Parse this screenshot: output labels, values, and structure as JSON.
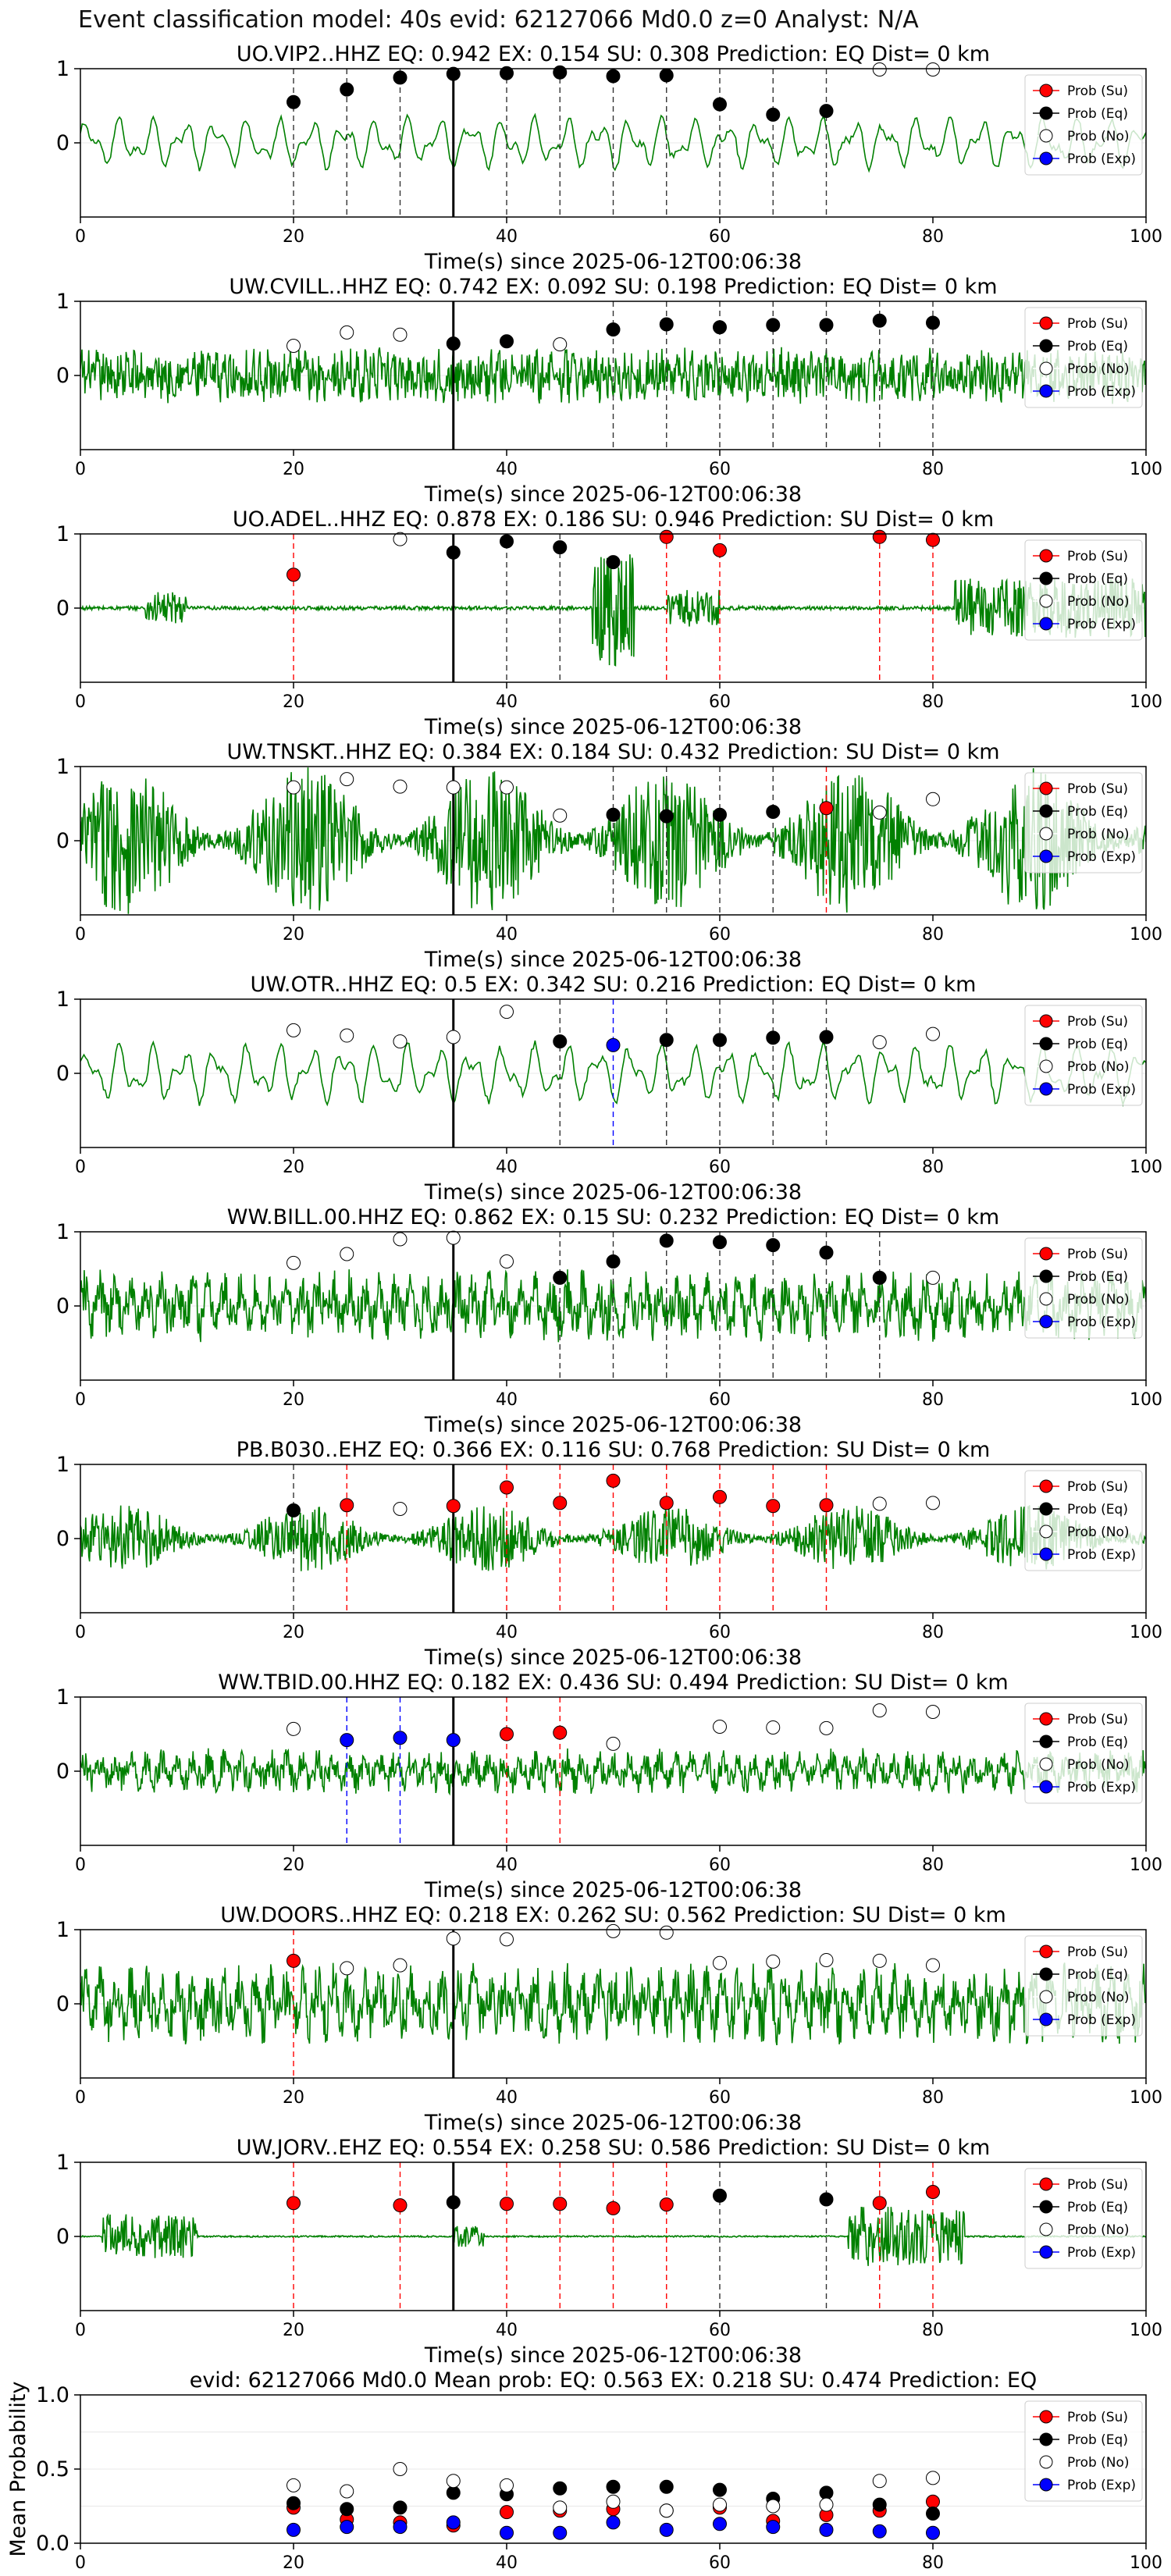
{
  "figure_title": "Event classification model: 40s evid: 62127066 Md0.0 z=0 Analyst: N/A",
  "legend": [
    "Prob (Su)",
    "Prob (Eq)",
    "Prob (No)",
    "Prob (Exp)"
  ],
  "colors": {
    "su": "#ff0000",
    "eq": "#000000",
    "no": "#ffffff",
    "exp": "#0000ff",
    "wave": "#008000"
  },
  "x_label": "Time(s) since 2025-06-12T00:06:38",
  "x_ticks": [
    0,
    20,
    40,
    60,
    80,
    100
  ],
  "y_ticks": [
    0,
    1
  ],
  "xlim": [
    0,
    100
  ],
  "origin_marker_time": 35,
  "chart_data": [
    {
      "type": "scatter",
      "title": "UO.VIP2..HHZ   EQ: 0.942  EX: 0.154  SU: 0.308   Prediction: EQ    Dist= 0 km",
      "ylim": [
        -1,
        1
      ],
      "wave": {
        "style": "smooth",
        "amp": 0.35
      },
      "points": [
        [
          20,
          "eq",
          0.55
        ],
        [
          25,
          "eq",
          0.72
        ],
        [
          30,
          "eq",
          0.88
        ],
        [
          35,
          "eq",
          0.93
        ],
        [
          40,
          "eq",
          0.94
        ],
        [
          45,
          "eq",
          0.95
        ],
        [
          50,
          "eq",
          0.9
        ],
        [
          55,
          "eq",
          0.91
        ],
        [
          60,
          "eq",
          0.52
        ],
        [
          65,
          "eq",
          0.38
        ],
        [
          70,
          "eq",
          0.43
        ],
        [
          75,
          "no",
          0.99
        ],
        [
          80,
          "no",
          0.99
        ]
      ],
      "lines": [
        [
          20,
          "eq"
        ],
        [
          25,
          "eq"
        ],
        [
          30,
          "eq"
        ],
        [
          40,
          "eq"
        ],
        [
          45,
          "eq"
        ],
        [
          50,
          "eq"
        ],
        [
          55,
          "eq"
        ],
        [
          60,
          "eq"
        ],
        [
          65,
          "eq"
        ],
        [
          70,
          "eq"
        ]
      ]
    },
    {
      "type": "scatter",
      "title": "UW.CVILL..HHZ   EQ: 0.742  EX: 0.092  SU: 0.198   Prediction: EQ    Dist= 0 km",
      "ylim": [
        -1,
        1
      ],
      "wave": {
        "style": "noise",
        "amp": 0.35
      },
      "points": [
        [
          20,
          "no",
          0.4
        ],
        [
          25,
          "no",
          0.58
        ],
        [
          30,
          "no",
          0.55
        ],
        [
          35,
          "eq",
          0.43
        ],
        [
          40,
          "eq",
          0.46
        ],
        [
          45,
          "no",
          0.42
        ],
        [
          50,
          "eq",
          0.62
        ],
        [
          55,
          "eq",
          0.69
        ],
        [
          60,
          "eq",
          0.65
        ],
        [
          65,
          "eq",
          0.68
        ],
        [
          70,
          "eq",
          0.68
        ],
        [
          75,
          "eq",
          0.74
        ],
        [
          80,
          "eq",
          0.71
        ]
      ],
      "lines": [
        [
          50,
          "eq"
        ],
        [
          55,
          "eq"
        ],
        [
          60,
          "eq"
        ],
        [
          65,
          "eq"
        ],
        [
          70,
          "eq"
        ],
        [
          75,
          "eq"
        ],
        [
          80,
          "eq"
        ]
      ]
    },
    {
      "type": "scatter",
      "title": "UO.ADEL..HHZ   EQ: 0.878  EX: 0.186  SU: 0.946   Prediction: SU    Dist= 0 km",
      "ylim": [
        -1,
        1
      ],
      "wave": {
        "style": "bursts",
        "amp": 0.1
      },
      "points": [
        [
          20,
          "su",
          0.45
        ],
        [
          30,
          "no",
          0.93
        ],
        [
          35,
          "eq",
          0.75
        ],
        [
          40,
          "eq",
          0.9
        ],
        [
          45,
          "eq",
          0.82
        ],
        [
          50,
          "eq",
          0.62
        ],
        [
          55,
          "su",
          0.96
        ],
        [
          60,
          "su",
          0.78
        ],
        [
          75,
          "su",
          0.96
        ],
        [
          80,
          "su",
          0.92
        ]
      ],
      "lines": [
        [
          20,
          "su"
        ],
        [
          40,
          "eq"
        ],
        [
          45,
          "eq"
        ],
        [
          55,
          "su"
        ],
        [
          60,
          "su"
        ],
        [
          75,
          "su"
        ],
        [
          80,
          "su"
        ]
      ]
    },
    {
      "type": "scatter",
      "title": "UW.TNSKT..HHZ   EQ: 0.384  EX: 0.184  SU: 0.432   Prediction: SU    Dist= 0 km",
      "ylim": [
        -1,
        1
      ],
      "wave": {
        "style": "dense",
        "amp": 0.55
      },
      "points": [
        [
          20,
          "no",
          0.72
        ],
        [
          25,
          "no",
          0.83
        ],
        [
          30,
          "no",
          0.73
        ],
        [
          35,
          "no",
          0.72
        ],
        [
          40,
          "no",
          0.72
        ],
        [
          45,
          "no",
          0.34
        ],
        [
          50,
          "eq",
          0.35
        ],
        [
          55,
          "eq",
          0.33
        ],
        [
          60,
          "eq",
          0.35
        ],
        [
          65,
          "eq",
          0.39
        ],
        [
          70,
          "su",
          0.44
        ],
        [
          75,
          "no",
          0.38
        ],
        [
          80,
          "no",
          0.56
        ]
      ],
      "lines": [
        [
          50,
          "eq"
        ],
        [
          55,
          "eq"
        ],
        [
          60,
          "eq"
        ],
        [
          65,
          "eq"
        ],
        [
          70,
          "su"
        ]
      ]
    },
    {
      "type": "scatter",
      "title": "UW.OTR..HHZ   EQ: 0.5  EX: 0.342  SU: 0.216   Prediction: EQ    Dist= 0 km",
      "ylim": [
        -1,
        1
      ],
      "wave": {
        "style": "smooth",
        "amp": 0.4
      },
      "points": [
        [
          20,
          "no",
          0.58
        ],
        [
          25,
          "no",
          0.51
        ],
        [
          30,
          "no",
          0.43
        ],
        [
          35,
          "no",
          0.49
        ],
        [
          40,
          "no",
          0.83
        ],
        [
          45,
          "eq",
          0.43
        ],
        [
          50,
          "exp",
          0.38
        ],
        [
          55,
          "eq",
          0.45
        ],
        [
          60,
          "eq",
          0.45
        ],
        [
          65,
          "eq",
          0.48
        ],
        [
          70,
          "eq",
          0.49
        ],
        [
          75,
          "no",
          0.42
        ],
        [
          80,
          "no",
          0.53
        ]
      ],
      "lines": [
        [
          45,
          "eq"
        ],
        [
          50,
          "exp"
        ],
        [
          55,
          "eq"
        ],
        [
          60,
          "eq"
        ],
        [
          65,
          "eq"
        ],
        [
          70,
          "eq"
        ]
      ]
    },
    {
      "type": "scatter",
      "title": "WW.BILL.00.HHZ   EQ: 0.862  EX: 0.15  SU: 0.232   Prediction: EQ    Dist= 0 km",
      "ylim": [
        -1,
        1
      ],
      "wave": {
        "style": "medium",
        "amp": 0.4
      },
      "points": [
        [
          20,
          "no",
          0.58
        ],
        [
          25,
          "no",
          0.7
        ],
        [
          30,
          "no",
          0.9
        ],
        [
          35,
          "no",
          0.92
        ],
        [
          40,
          "no",
          0.6
        ],
        [
          45,
          "eq",
          0.38
        ],
        [
          50,
          "eq",
          0.6
        ],
        [
          55,
          "eq",
          0.88
        ],
        [
          60,
          "eq",
          0.86
        ],
        [
          65,
          "eq",
          0.82
        ],
        [
          70,
          "eq",
          0.72
        ],
        [
          75,
          "eq",
          0.38
        ],
        [
          80,
          "no",
          0.38
        ]
      ],
      "lines": [
        [
          45,
          "eq"
        ],
        [
          50,
          "eq"
        ],
        [
          55,
          "eq"
        ],
        [
          60,
          "eq"
        ],
        [
          65,
          "eq"
        ],
        [
          70,
          "eq"
        ],
        [
          75,
          "eq"
        ]
      ]
    },
    {
      "type": "scatter",
      "title": "PB.B030..EHZ   EQ: 0.366  EX: 0.116  SU: 0.768   Prediction: SU    Dist= 0 km",
      "ylim": [
        -1,
        1
      ],
      "wave": {
        "style": "dense",
        "amp": 0.25
      },
      "points": [
        [
          20,
          "eq",
          0.38
        ],
        [
          25,
          "su",
          0.45
        ],
        [
          30,
          "no",
          0.4
        ],
        [
          35,
          "su",
          0.44
        ],
        [
          40,
          "su",
          0.69
        ],
        [
          45,
          "su",
          0.48
        ],
        [
          50,
          "su",
          0.78
        ],
        [
          55,
          "su",
          0.48
        ],
        [
          60,
          "su",
          0.56
        ],
        [
          65,
          "su",
          0.44
        ],
        [
          70,
          "su",
          0.45
        ],
        [
          75,
          "no",
          0.47
        ],
        [
          80,
          "no",
          0.48
        ]
      ],
      "lines": [
        [
          20,
          "eq"
        ],
        [
          25,
          "su"
        ],
        [
          40,
          "su"
        ],
        [
          45,
          "su"
        ],
        [
          50,
          "su"
        ],
        [
          55,
          "su"
        ],
        [
          60,
          "su"
        ],
        [
          65,
          "su"
        ],
        [
          70,
          "su"
        ]
      ]
    },
    {
      "type": "scatter",
      "title": "WW.TBID.00.HHZ   EQ: 0.182  EX: 0.436  SU: 0.494   Prediction: SU    Dist= 0 km",
      "ylim": [
        -1,
        1
      ],
      "wave": {
        "style": "medium",
        "amp": 0.25
      },
      "points": [
        [
          20,
          "no",
          0.57
        ],
        [
          25,
          "exp",
          0.42
        ],
        [
          30,
          "exp",
          0.45
        ],
        [
          35,
          "exp",
          0.42
        ],
        [
          40,
          "su",
          0.5
        ],
        [
          45,
          "su",
          0.52
        ],
        [
          50,
          "no",
          0.37
        ],
        [
          60,
          "no",
          0.6
        ],
        [
          65,
          "no",
          0.59
        ],
        [
          70,
          "no",
          0.58
        ],
        [
          75,
          "no",
          0.82
        ],
        [
          80,
          "no",
          0.8
        ]
      ],
      "lines": [
        [
          25,
          "exp"
        ],
        [
          30,
          "exp"
        ],
        [
          40,
          "su"
        ],
        [
          45,
          "su"
        ]
      ]
    },
    {
      "type": "scatter",
      "title": "UW.DOORS..HHZ   EQ: 0.218  EX: 0.262  SU: 0.562   Prediction: SU    Dist= 0 km",
      "ylim": [
        -1,
        1
      ],
      "wave": {
        "style": "medium",
        "amp": 0.45
      },
      "points": [
        [
          20,
          "su",
          0.58
        ],
        [
          25,
          "no",
          0.48
        ],
        [
          30,
          "no",
          0.52
        ],
        [
          35,
          "no",
          0.88
        ],
        [
          40,
          "no",
          0.87
        ],
        [
          50,
          "no",
          0.98
        ],
        [
          55,
          "no",
          0.96
        ],
        [
          60,
          "no",
          0.55
        ],
        [
          65,
          "no",
          0.57
        ],
        [
          70,
          "no",
          0.59
        ],
        [
          75,
          "no",
          0.58
        ],
        [
          80,
          "no",
          0.52
        ]
      ],
      "lines": [
        [
          20,
          "su"
        ]
      ]
    },
    {
      "type": "scatter",
      "title": "UW.JORV..EHZ   EQ: 0.554  EX: 0.258  SU: 0.586   Prediction: SU    Dist= 0 km",
      "ylim": [
        -1,
        1
      ],
      "wave": {
        "style": "jorv",
        "amp": 0.05
      },
      "points": [
        [
          20,
          "su",
          0.45
        ],
        [
          30,
          "su",
          0.42
        ],
        [
          35,
          "eq",
          0.46
        ],
        [
          40,
          "su",
          0.44
        ],
        [
          45,
          "su",
          0.44
        ],
        [
          50,
          "su",
          0.38
        ],
        [
          55,
          "su",
          0.43
        ],
        [
          60,
          "eq",
          0.55
        ],
        [
          70,
          "eq",
          0.5
        ],
        [
          75,
          "su",
          0.45
        ],
        [
          80,
          "su",
          0.6
        ]
      ],
      "lines": [
        [
          20,
          "su"
        ],
        [
          30,
          "su"
        ],
        [
          40,
          "su"
        ],
        [
          45,
          "su"
        ],
        [
          50,
          "su"
        ],
        [
          55,
          "su"
        ],
        [
          60,
          "eq"
        ],
        [
          70,
          "eq"
        ],
        [
          75,
          "su"
        ],
        [
          80,
          "su"
        ]
      ]
    }
  ],
  "summary": {
    "title": "evid: 62127066  Md0.0   Mean prob:   EQ: 0.563  EX: 0.218  SU: 0.474   Prediction: EQ",
    "ylabel": "Mean Probability",
    "ylim": [
      0,
      1
    ],
    "y_ticks": [
      0.0,
      0.5,
      1.0
    ],
    "x": [
      20,
      25,
      30,
      35,
      40,
      45,
      50,
      55,
      60,
      65,
      70,
      75,
      80
    ],
    "series": [
      {
        "name": "Prob (Su)",
        "key": "su",
        "values": [
          0.24,
          0.16,
          0.14,
          0.12,
          0.21,
          0.22,
          0.23,
          0.22,
          0.24,
          0.15,
          0.19,
          0.22,
          0.28
        ]
      },
      {
        "name": "Prob (Eq)",
        "key": "eq",
        "values": [
          0.27,
          0.23,
          0.24,
          0.34,
          0.33,
          0.37,
          0.38,
          0.38,
          0.36,
          0.3,
          0.34,
          0.26,
          0.2
        ]
      },
      {
        "name": "Prob (No)",
        "key": "no",
        "values": [
          0.39,
          0.35,
          0.5,
          0.42,
          0.39,
          0.24,
          0.28,
          0.22,
          0.26,
          0.25,
          0.26,
          0.42,
          0.44
        ]
      },
      {
        "name": "Prob (Exp)",
        "key": "exp",
        "values": [
          0.09,
          0.11,
          0.11,
          0.14,
          0.07,
          0.07,
          0.14,
          0.09,
          0.13,
          0.11,
          0.09,
          0.08,
          0.07
        ]
      }
    ]
  }
}
